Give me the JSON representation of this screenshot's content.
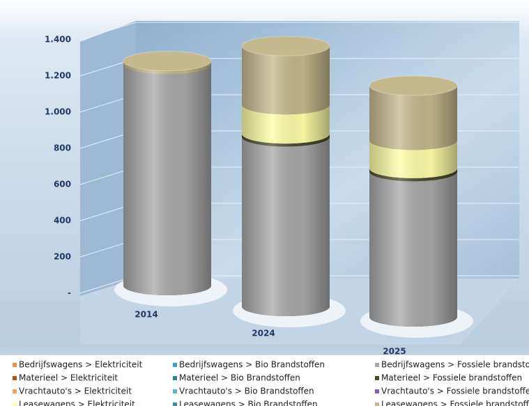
{
  "chart_data": {
    "type": "bar3d_stacked_cylinder",
    "categories": [
      "2014",
      "2024",
      "2025"
    ],
    "ylim": [
      0,
      1400
    ],
    "yticks": [
      {
        "value": 0,
        "label": "-"
      },
      200,
      400,
      600,
      800,
      {
        "value": 1000,
        "label": "1.000"
      },
      {
        "value": 1200,
        "label": "1.200"
      },
      {
        "value": 1400,
        "label": "1.400"
      }
    ],
    "grid": true,
    "series": [
      {
        "name": "Bedrijfswagens > Elektriciteit",
        "color": "#f08c3c",
        "values": [
          0,
          0,
          0
        ]
      },
      {
        "name": "Bedrijfswagens > Bio Brandstoffen",
        "color": "#3aa0c0",
        "values": [
          0,
          0,
          0
        ]
      },
      {
        "name": "Bedrijfswagens > Fossiele brandstoffen",
        "color": "#a8a8a8",
        "values": [
          1220,
          870,
          720
        ]
      },
      {
        "name": "Materieel > Elektriciteit",
        "color": "#b4501e",
        "values": [
          0,
          0,
          0
        ]
      },
      {
        "name": "Materieel > Bio Brandstoffen",
        "color": "#2f7f8f",
        "values": [
          0,
          0,
          0
        ]
      },
      {
        "name": "Materieel > Fossiele brandstoffen",
        "color": "#4a4a2a",
        "values": [
          0,
          15,
          15
        ]
      },
      {
        "name": "Vrachtauto's > Elektriciteit",
        "color": "#f4a060",
        "values": [
          0,
          0,
          0
        ]
      },
      {
        "name": "Vrachtauto's > Bio Brandstoffen",
        "color": "#5ab4c8",
        "values": [
          0,
          0,
          0
        ]
      },
      {
        "name": "Vrachtauto's > Fossiele brandstoffen",
        "color": "#8064a2",
        "values": [
          0,
          0,
          0
        ]
      },
      {
        "name": "Leasewagens > Elektriciteit",
        "color": "#ffffa8",
        "values": [
          0,
          150,
          140
        ]
      },
      {
        "name": "Leasewagens > Bio Brandstoffen",
        "color": "#3c8caa",
        "values": [
          0,
          0,
          0
        ]
      },
      {
        "name": "Leasewagens > Fossiele brandstoffen",
        "color": "#c4b98c",
        "values": [
          20,
          300,
          270
        ]
      }
    ]
  }
}
